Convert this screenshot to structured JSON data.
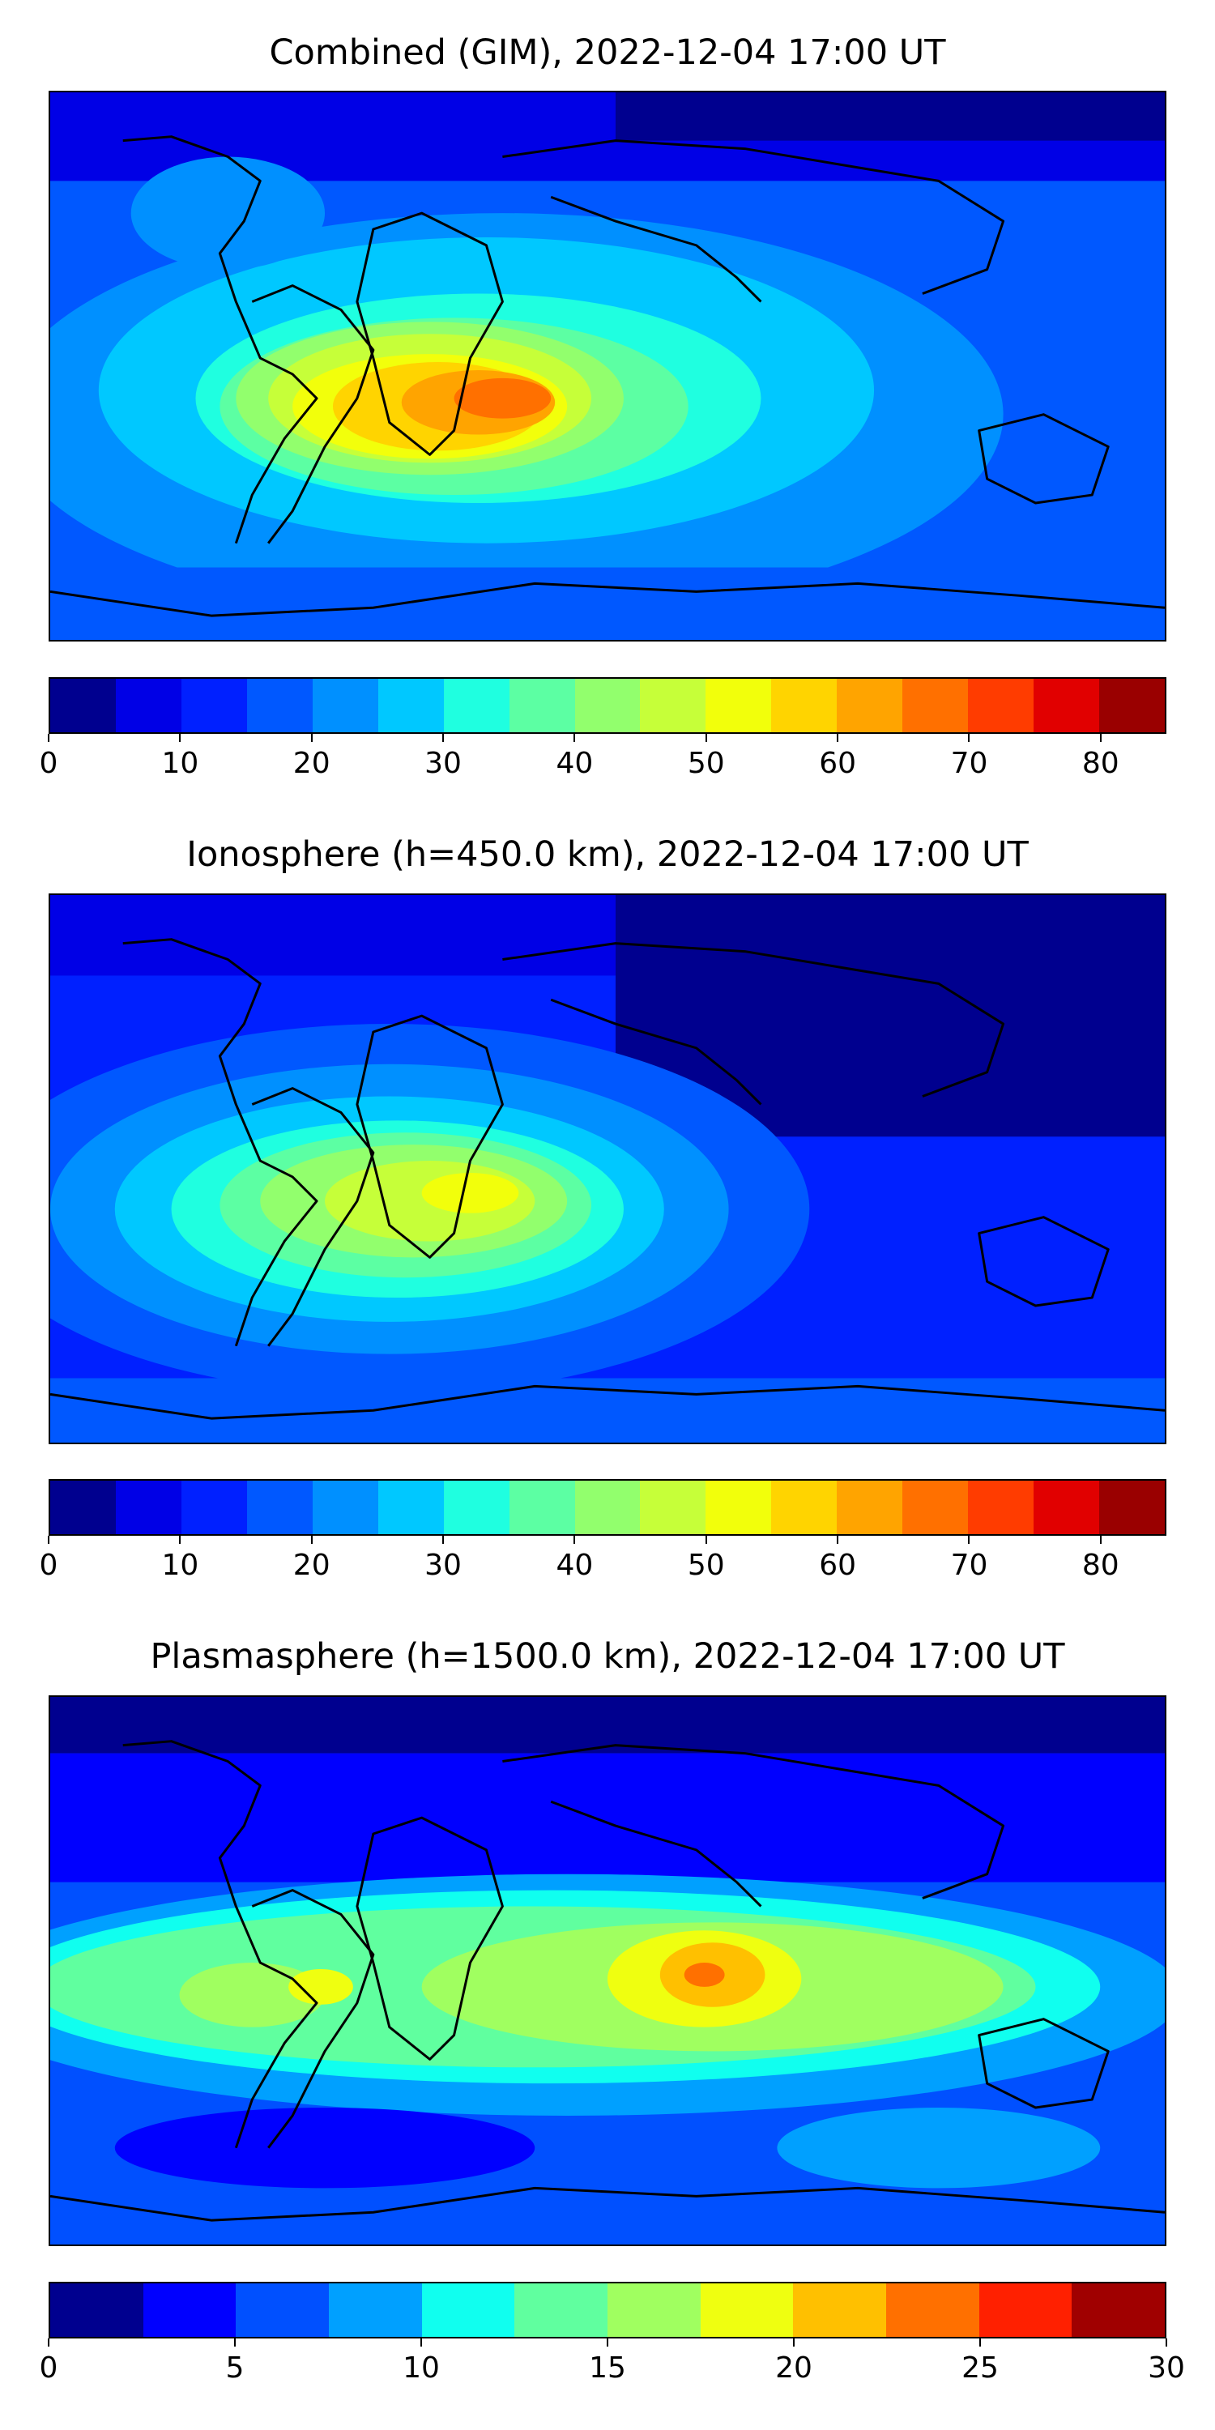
{
  "colormap": [
    "#00008f",
    "#0000e6",
    "#0020ff",
    "#0058ff",
    "#0090ff",
    "#00c8ff",
    "#1fffe0",
    "#5cffa3",
    "#92ff6d",
    "#c6ff39",
    "#f2ff0b",
    "#ffd400",
    "#ffa400",
    "#ff7000",
    "#ff3c00",
    "#e10000",
    "#9a0000"
  ],
  "colormap_small": [
    "#00008f",
    "#0000ff",
    "#0050ff",
    "#00a0ff",
    "#10ffef",
    "#60ff9f",
    "#a0ff60",
    "#efff10",
    "#ffc000",
    "#ff7000",
    "#ff2000",
    "#a00000"
  ],
  "coastline_color": "#000000",
  "panels": [
    {
      "title": "Combined (GIM), 2022-12-04 17:00 UT",
      "colorbar": {
        "min": 0,
        "max": 85,
        "step": 5,
        "ticks": [
          "0",
          "10",
          "20",
          "30",
          "40",
          "50",
          "60",
          "70",
          "80"
        ],
        "tick_values": [
          0,
          10,
          20,
          30,
          40,
          50,
          60,
          70,
          80
        ]
      }
    },
    {
      "title": "Ionosphere  (h=450.0 km), 2022-12-04 17:00 UT",
      "colorbar": {
        "min": 0,
        "max": 85,
        "step": 5,
        "ticks": [
          "0",
          "10",
          "20",
          "30",
          "40",
          "50",
          "60",
          "70",
          "80"
        ],
        "tick_values": [
          0,
          10,
          20,
          30,
          40,
          50,
          60,
          70,
          80
        ]
      }
    },
    {
      "title": "Plasmasphere (h=1500.0 km), 2022-12-04 17:00 UT",
      "colorbar": {
        "min": 0,
        "max": 30,
        "step": 2.5,
        "ticks": [
          "0",
          "5",
          "10",
          "15",
          "20",
          "25",
          "30"
        ],
        "tick_values": [
          0,
          5,
          10,
          15,
          20,
          25,
          30
        ]
      }
    }
  ]
}
